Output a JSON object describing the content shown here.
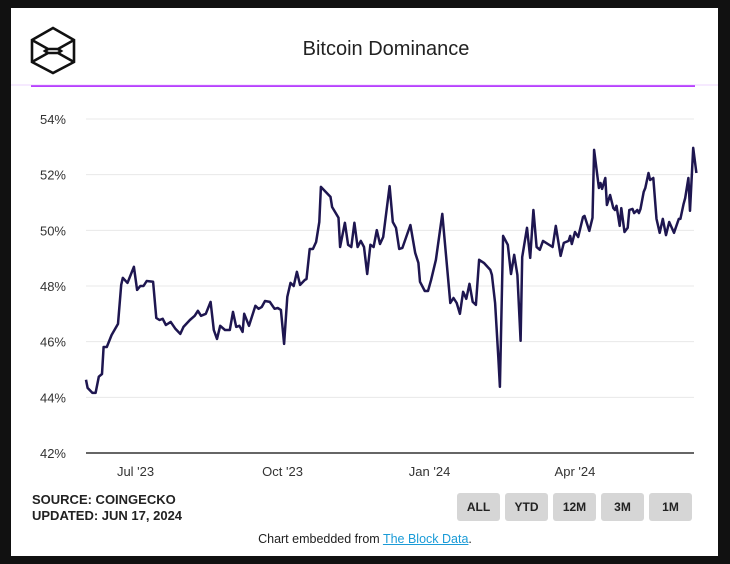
{
  "header": {
    "title": "Bitcoin Dominance",
    "logo_icon": "the-block-cube-logo-icon",
    "accent_color": "#a000ff"
  },
  "footer": {
    "source": "SOURCE: COINGECKO",
    "updated": "UPDATED: JUN 17, 2024",
    "embed_prefix": "Chart embedded from ",
    "embed_link": "The Block Data",
    "embed_suffix": "."
  },
  "range_buttons": [
    "ALL",
    "YTD",
    "12M",
    "3M",
    "1M"
  ],
  "chart_data": {
    "type": "line",
    "title": "Bitcoin Dominance",
    "xlabel": "",
    "ylabel": "",
    "ylim": [
      42,
      54
    ],
    "yticks": [
      "42%",
      "44%",
      "46%",
      "48%",
      "50%",
      "52%",
      "54%"
    ],
    "ytick_values": [
      42,
      44,
      46,
      48,
      50,
      52,
      54
    ],
    "xticks": [
      "Jul '23",
      "Oct '23",
      "Jan '24",
      "Apr '24"
    ],
    "xtick_dates": [
      "2023-07-01",
      "2023-10-01",
      "2024-01-01",
      "2024-04-01"
    ],
    "xlim": [
      "2023-05-31",
      "2024-06-17"
    ],
    "grid": true,
    "line_color": "#1e1650",
    "series": [
      {
        "points": [
          [
            "2023-05-31",
            44.63
          ],
          [
            "2023-06-01",
            44.34
          ],
          [
            "2023-06-04",
            44.16
          ],
          [
            "2023-06-06",
            44.16
          ],
          [
            "2023-06-08",
            44.74
          ],
          [
            "2023-06-10",
            44.84
          ],
          [
            "2023-06-11",
            45.81
          ],
          [
            "2023-06-13",
            45.81
          ],
          [
            "2023-06-16",
            46.24
          ],
          [
            "2023-06-20",
            46.64
          ],
          [
            "2023-06-22",
            48.04
          ],
          [
            "2023-06-23",
            48.29
          ],
          [
            "2023-06-26",
            48.11
          ],
          [
            "2023-06-30",
            48.69
          ],
          [
            "2023-07-02",
            47.86
          ],
          [
            "2023-07-04",
            48.0
          ],
          [
            "2023-07-06",
            48.0
          ],
          [
            "2023-07-08",
            48.18
          ],
          [
            "2023-07-12",
            48.15
          ],
          [
            "2023-07-14",
            46.85
          ],
          [
            "2023-07-16",
            46.78
          ],
          [
            "2023-07-18",
            46.82
          ],
          [
            "2023-07-20",
            46.6
          ],
          [
            "2023-07-23",
            46.71
          ],
          [
            "2023-07-26",
            46.46
          ],
          [
            "2023-07-29",
            46.28
          ],
          [
            "2023-07-31",
            46.53
          ],
          [
            "2023-08-04",
            46.78
          ],
          [
            "2023-08-07",
            46.93
          ],
          [
            "2023-08-09",
            47.11
          ],
          [
            "2023-08-11",
            46.93
          ],
          [
            "2023-08-14",
            47.0
          ],
          [
            "2023-08-17",
            47.43
          ],
          [
            "2023-08-19",
            46.42
          ],
          [
            "2023-08-21",
            46.1
          ],
          [
            "2023-08-23",
            46.57
          ],
          [
            "2023-08-26",
            46.42
          ],
          [
            "2023-08-29",
            46.42
          ],
          [
            "2023-08-31",
            47.07
          ],
          [
            "2023-09-02",
            46.53
          ],
          [
            "2023-09-04",
            46.57
          ],
          [
            "2023-09-06",
            46.35
          ],
          [
            "2023-09-07",
            47.0
          ],
          [
            "2023-09-10",
            46.57
          ],
          [
            "2023-09-14",
            47.29
          ],
          [
            "2023-09-16",
            47.18
          ],
          [
            "2023-09-18",
            47.25
          ],
          [
            "2023-09-20",
            47.46
          ],
          [
            "2023-09-23",
            47.43
          ],
          [
            "2023-09-26",
            47.18
          ],
          [
            "2023-09-28",
            47.21
          ],
          [
            "2023-09-30",
            47.14
          ],
          [
            "2023-10-02",
            45.92
          ],
          [
            "2023-10-04",
            47.61
          ],
          [
            "2023-10-06",
            48.11
          ],
          [
            "2023-10-08",
            48.0
          ],
          [
            "2023-10-10",
            48.51
          ],
          [
            "2023-10-12",
            48.04
          ],
          [
            "2023-10-15",
            48.22
          ],
          [
            "2023-10-16",
            48.25
          ],
          [
            "2023-10-18",
            49.33
          ],
          [
            "2023-10-20",
            49.33
          ],
          [
            "2023-10-22",
            49.58
          ],
          [
            "2023-10-24",
            50.3
          ],
          [
            "2023-10-25",
            51.56
          ],
          [
            "2023-10-28",
            51.38
          ],
          [
            "2023-10-31",
            51.2
          ],
          [
            "2023-11-01",
            50.84
          ],
          [
            "2023-11-05",
            50.45
          ],
          [
            "2023-11-06",
            49.4
          ],
          [
            "2023-11-09",
            50.27
          ],
          [
            "2023-11-11",
            49.48
          ],
          [
            "2023-11-13",
            49.4
          ],
          [
            "2023-11-15",
            50.27
          ],
          [
            "2023-11-17",
            49.4
          ],
          [
            "2023-11-19",
            49.62
          ],
          [
            "2023-11-21",
            49.4
          ],
          [
            "2023-11-23",
            48.43
          ],
          [
            "2023-11-25",
            49.48
          ],
          [
            "2023-11-27",
            49.4
          ],
          [
            "2023-11-29",
            50.01
          ],
          [
            "2023-12-01",
            49.51
          ],
          [
            "2023-12-03",
            49.76
          ],
          [
            "2023-12-07",
            51.59
          ],
          [
            "2023-12-09",
            50.3
          ],
          [
            "2023-12-11",
            50.09
          ],
          [
            "2023-12-13",
            49.33
          ],
          [
            "2023-12-15",
            49.37
          ],
          [
            "2023-12-20",
            50.19
          ],
          [
            "2023-12-23",
            49.19
          ],
          [
            "2023-12-25",
            48.83
          ],
          [
            "2023-12-26",
            48.15
          ],
          [
            "2023-12-29",
            47.82
          ],
          [
            "2023-12-31",
            47.82
          ],
          [
            "2024-01-02",
            48.22
          ],
          [
            "2024-01-05",
            48.94
          ],
          [
            "2024-01-09",
            50.59
          ],
          [
            "2024-01-14",
            47.39
          ],
          [
            "2024-01-16",
            47.57
          ],
          [
            "2024-01-18",
            47.39
          ],
          [
            "2024-01-20",
            47.0
          ],
          [
            "2024-01-22",
            47.79
          ],
          [
            "2024-01-24",
            47.54
          ],
          [
            "2024-01-26",
            48.08
          ],
          [
            "2024-01-28",
            47.43
          ],
          [
            "2024-01-30",
            47.32
          ],
          [
            "2024-02-01",
            48.94
          ],
          [
            "2024-02-04",
            48.83
          ],
          [
            "2024-02-08",
            48.58
          ],
          [
            "2024-02-09",
            48.4
          ],
          [
            "2024-02-11",
            47.39
          ],
          [
            "2024-02-13",
            45.45
          ],
          [
            "2024-02-14",
            44.38
          ],
          [
            "2024-02-16",
            49.8
          ],
          [
            "2024-02-19",
            49.48
          ],
          [
            "2024-02-21",
            48.43
          ],
          [
            "2024-02-23",
            49.12
          ],
          [
            "2024-02-25",
            48.4
          ],
          [
            "2024-02-27",
            46.03
          ],
          [
            "2024-02-28",
            49.04
          ],
          [
            "2024-03-02",
            50.09
          ],
          [
            "2024-03-04",
            49.01
          ],
          [
            "2024-03-06",
            50.73
          ],
          [
            "2024-03-08",
            49.4
          ],
          [
            "2024-03-10",
            49.3
          ],
          [
            "2024-03-12",
            49.62
          ],
          [
            "2024-03-18",
            49.4
          ],
          [
            "2024-03-20",
            50.16
          ],
          [
            "2024-03-23",
            49.08
          ],
          [
            "2024-03-25",
            49.55
          ],
          [
            "2024-03-28",
            49.62
          ],
          [
            "2024-03-29",
            49.8
          ],
          [
            "2024-03-30",
            49.51
          ],
          [
            "2024-04-01",
            49.94
          ],
          [
            "2024-04-03",
            49.76
          ],
          [
            "2024-04-06",
            50.48
          ],
          [
            "2024-04-07",
            50.52
          ],
          [
            "2024-04-10",
            49.98
          ],
          [
            "2024-04-12",
            50.45
          ],
          [
            "2024-04-13",
            52.89
          ],
          [
            "2024-04-16",
            51.52
          ],
          [
            "2024-04-17",
            51.7
          ],
          [
            "2024-04-18",
            51.49
          ],
          [
            "2024-04-20",
            51.88
          ],
          [
            "2024-04-21",
            50.91
          ],
          [
            "2024-04-23",
            51.27
          ],
          [
            "2024-04-25",
            50.8
          ],
          [
            "2024-04-26",
            50.73
          ],
          [
            "2024-04-27",
            50.88
          ],
          [
            "2024-04-29",
            50.16
          ],
          [
            "2024-04-30",
            50.8
          ],
          [
            "2024-05-02",
            49.94
          ],
          [
            "2024-05-04",
            50.09
          ],
          [
            "2024-05-05",
            50.73
          ],
          [
            "2024-05-07",
            50.77
          ],
          [
            "2024-05-08",
            50.62
          ],
          [
            "2024-05-10",
            50.73
          ],
          [
            "2024-05-11",
            50.62
          ],
          [
            "2024-05-12",
            50.77
          ],
          [
            "2024-05-14",
            51.38
          ],
          [
            "2024-05-15",
            51.52
          ],
          [
            "2024-05-17",
            52.06
          ],
          [
            "2024-05-18",
            51.81
          ],
          [
            "2024-05-20",
            51.88
          ],
          [
            "2024-05-22",
            50.41
          ],
          [
            "2024-05-24",
            49.91
          ],
          [
            "2024-05-26",
            50.41
          ],
          [
            "2024-05-28",
            49.83
          ],
          [
            "2024-05-30",
            50.3
          ],
          [
            "2024-06-02",
            49.91
          ],
          [
            "2024-06-05",
            50.41
          ],
          [
            "2024-06-06",
            50.41
          ],
          [
            "2024-06-08",
            50.95
          ],
          [
            "2024-06-09",
            51.16
          ],
          [
            "2024-06-11",
            51.88
          ],
          [
            "2024-06-12",
            50.7
          ],
          [
            "2024-06-14",
            52.96
          ],
          [
            "2024-06-16",
            52.06
          ]
        ]
      }
    ]
  }
}
